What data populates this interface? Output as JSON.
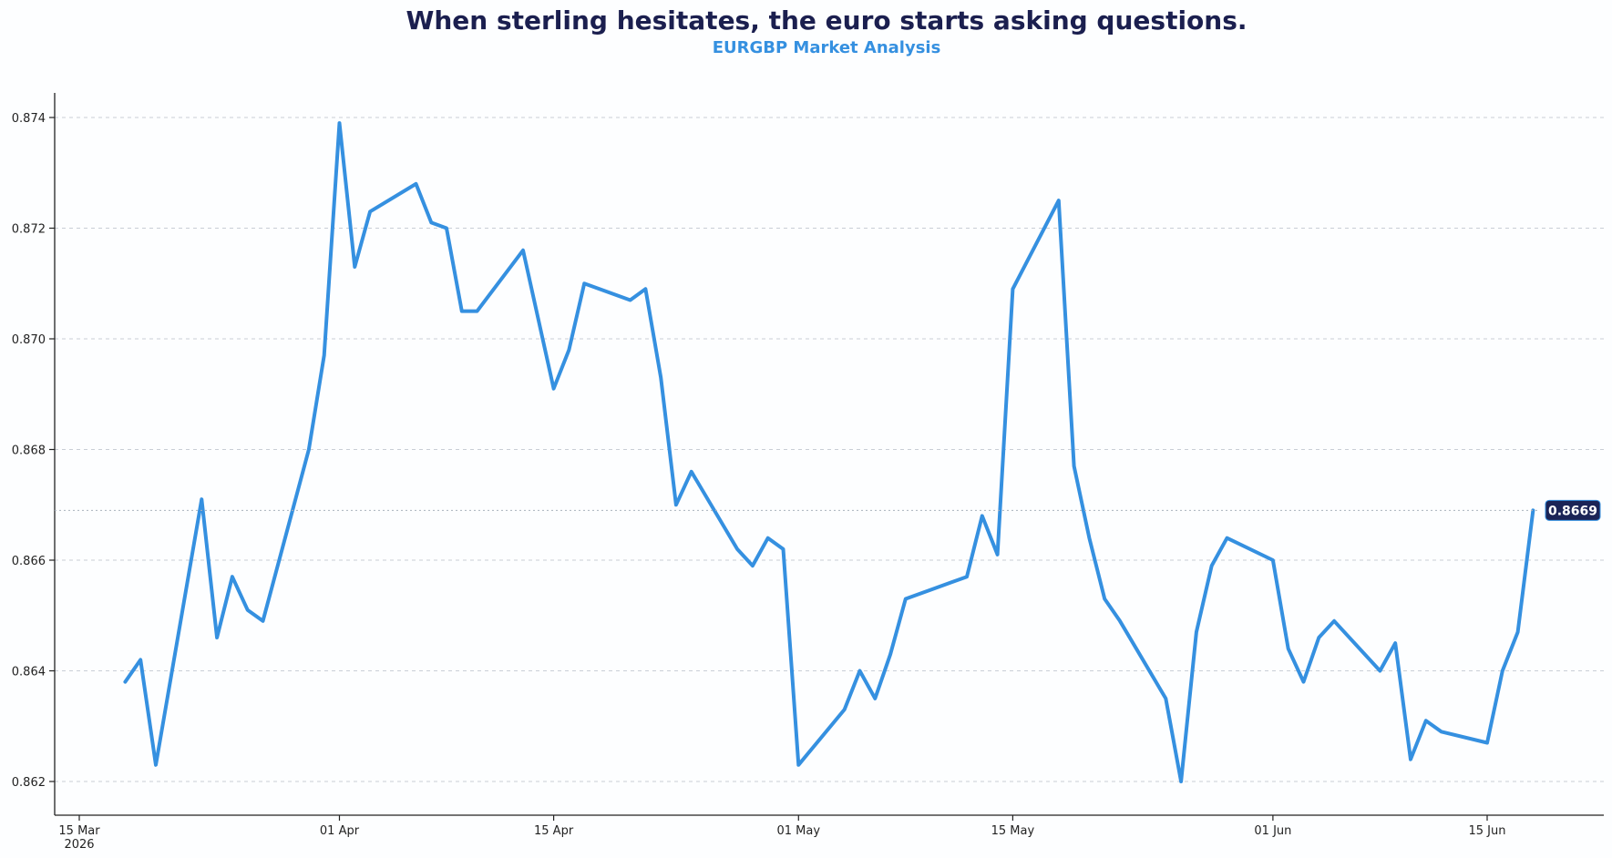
{
  "chart_data": {
    "type": "line",
    "title": "When sterling hesitates, the euro starts asking questions.",
    "subtitle": "EURGBP Market Analysis",
    "xlabel": "",
    "ylabel": "",
    "xlim": [
      "2026-03-15",
      "2026-06-22"
    ],
    "ylim": [
      0.8614,
      0.8744
    ],
    "grid": "horizontal",
    "y_ticks": [
      0.862,
      0.864,
      0.866,
      0.868,
      0.87,
      0.872,
      0.874
    ],
    "y_tick_labels": [
      "0.862",
      "0.864",
      "0.866",
      "0.868",
      "0.870",
      "0.872",
      "0.874"
    ],
    "x_ticks": [
      {
        "date": "2026-03-15",
        "label": "15 Mar",
        "sublabel": "2026"
      },
      {
        "date": "2026-04-01",
        "label": "01 Apr",
        "sublabel": ""
      },
      {
        "date": "2026-04-15",
        "label": "15 Apr",
        "sublabel": ""
      },
      {
        "date": "2026-05-01",
        "label": "01 May",
        "sublabel": ""
      },
      {
        "date": "2026-05-15",
        "label": "15 May",
        "sublabel": ""
      },
      {
        "date": "2026-06-01",
        "label": "01 Jun",
        "sublabel": ""
      },
      {
        "date": "2026-06-15",
        "label": "15 Jun",
        "sublabel": ""
      }
    ],
    "last_value_label": "0.8669",
    "series": [
      {
        "name": "",
        "color": "#3590e0",
        "points": [
          [
            "2026-03-18",
            0.8638
          ],
          [
            "2026-03-19",
            0.8642
          ],
          [
            "2026-03-20",
            0.8623
          ],
          [
            "2026-03-23",
            0.8671
          ],
          [
            "2026-03-24",
            0.8646
          ],
          [
            "2026-03-25",
            0.8657
          ],
          [
            "2026-03-26",
            0.8651
          ],
          [
            "2026-03-27",
            0.8649
          ],
          [
            "2026-03-30",
            0.868
          ],
          [
            "2026-03-31",
            0.8697
          ],
          [
            "2026-04-01",
            0.8739
          ],
          [
            "2026-04-02",
            0.8713
          ],
          [
            "2026-04-03",
            0.8723
          ],
          [
            "2026-04-06",
            0.8728
          ],
          [
            "2026-04-07",
            0.8721
          ],
          [
            "2026-04-08",
            0.872
          ],
          [
            "2026-04-09",
            0.8705
          ],
          [
            "2026-04-10",
            0.8705
          ],
          [
            "2026-04-13",
            0.8716
          ],
          [
            "2026-04-15",
            0.8691
          ],
          [
            "2026-04-16",
            0.8698
          ],
          [
            "2026-04-17",
            0.871
          ],
          [
            "2026-04-20",
            0.8707
          ],
          [
            "2026-04-21",
            0.8709
          ],
          [
            "2026-04-22",
            0.8693
          ],
          [
            "2026-04-23",
            0.867
          ],
          [
            "2026-04-24",
            0.8676
          ],
          [
            "2026-04-27",
            0.8662
          ],
          [
            "2026-04-28",
            0.8659
          ],
          [
            "2026-04-29",
            0.8664
          ],
          [
            "2026-04-30",
            0.8662
          ],
          [
            "2026-05-01",
            0.8623
          ],
          [
            "2026-05-04",
            0.8633
          ],
          [
            "2026-05-05",
            0.864
          ],
          [
            "2026-05-06",
            0.8635
          ],
          [
            "2026-05-07",
            0.8643
          ],
          [
            "2026-05-08",
            0.8653
          ],
          [
            "2026-05-11",
            0.8656
          ],
          [
            "2026-05-12",
            0.8657
          ],
          [
            "2026-05-13",
            0.8668
          ],
          [
            "2026-05-14",
            0.8661
          ],
          [
            "2026-05-15",
            0.8709
          ],
          [
            "2026-05-18",
            0.8725
          ],
          [
            "2026-05-19",
            0.8677
          ],
          [
            "2026-05-20",
            0.8664
          ],
          [
            "2026-05-21",
            0.8653
          ],
          [
            "2026-05-22",
            0.8649
          ],
          [
            "2026-05-25",
            0.8635
          ],
          [
            "2026-05-26",
            0.862
          ],
          [
            "2026-05-27",
            0.8647
          ],
          [
            "2026-05-28",
            0.8659
          ],
          [
            "2026-05-29",
            0.8664
          ],
          [
            "2026-06-01",
            0.866
          ],
          [
            "2026-06-02",
            0.8644
          ],
          [
            "2026-06-03",
            0.8638
          ],
          [
            "2026-06-04",
            0.8646
          ],
          [
            "2026-06-05",
            0.8649
          ],
          [
            "2026-06-08",
            0.864
          ],
          [
            "2026-06-09",
            0.8645
          ],
          [
            "2026-06-10",
            0.8624
          ],
          [
            "2026-06-11",
            0.8631
          ],
          [
            "2026-06-12",
            0.8629
          ],
          [
            "2026-06-15",
            0.8627
          ],
          [
            "2026-06-16",
            0.864
          ],
          [
            "2026-06-17",
            0.8647
          ],
          [
            "2026-06-18",
            0.8669
          ]
        ]
      }
    ]
  }
}
